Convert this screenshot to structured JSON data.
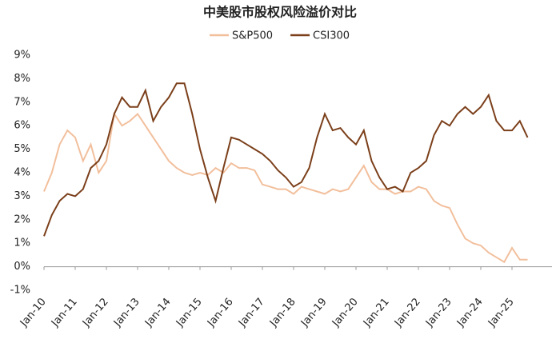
{
  "chart_data": {
    "type": "line",
    "title": "中美股市股权风险溢价对比",
    "categories": [
      "Jan-10",
      null,
      null,
      null,
      "Jan-11",
      null,
      null,
      null,
      "Jan-12",
      null,
      null,
      null,
      "Jan-13",
      null,
      null,
      null,
      "Jan-14",
      null,
      null,
      null,
      "Jan-15",
      null,
      null,
      null,
      "Jan-16",
      null,
      null,
      null,
      "Jan-17",
      null,
      null,
      null,
      "Jan-18",
      null,
      null,
      null,
      "Jan-19",
      null,
      null,
      null,
      "Jan-20",
      null,
      null,
      null,
      "Jan-21",
      null,
      null,
      null,
      "Jan-22",
      null,
      null,
      null,
      "Jan-23",
      null,
      null,
      null,
      "Jan-24",
      null,
      null,
      null,
      "Jan-25",
      null,
      null
    ],
    "series": [
      {
        "name": "S&P500",
        "color": "#f2bf9c",
        "values": [
          3.2,
          4.0,
          5.2,
          5.8,
          5.5,
          4.5,
          5.2,
          4.0,
          4.5,
          6.5,
          6.0,
          6.2,
          6.5,
          6.0,
          5.5,
          5.0,
          4.5,
          4.2,
          4.0,
          3.9,
          4.0,
          3.9,
          4.2,
          4.0,
          4.4,
          4.2,
          4.2,
          4.1,
          3.5,
          3.4,
          3.3,
          3.3,
          3.1,
          3.4,
          3.3,
          3.2,
          3.1,
          3.3,
          3.2,
          3.3,
          3.8,
          4.3,
          3.6,
          3.3,
          3.3,
          3.1,
          3.2,
          3.2,
          3.4,
          3.3,
          2.8,
          2.6,
          2.5,
          1.8,
          1.2,
          1.0,
          0.9,
          0.6,
          0.4,
          0.2,
          0.8,
          0.3,
          0.3
        ]
      },
      {
        "name": "CSI300",
        "color": "#7b3f1a",
        "values": [
          1.3,
          2.2,
          2.8,
          3.1,
          3.0,
          3.3,
          4.2,
          4.5,
          5.2,
          6.5,
          7.2,
          6.8,
          6.8,
          7.5,
          6.2,
          6.8,
          7.2,
          7.8,
          7.8,
          6.5,
          5.0,
          3.8,
          2.8,
          4.2,
          5.5,
          5.4,
          5.2,
          5.0,
          4.8,
          4.5,
          4.1,
          3.8,
          3.4,
          3.6,
          4.2,
          5.5,
          6.5,
          5.8,
          5.9,
          5.5,
          5.2,
          5.8,
          4.5,
          3.8,
          3.3,
          3.4,
          3.2,
          4.0,
          4.2,
          4.5,
          5.6,
          6.2,
          6.0,
          6.5,
          6.8,
          6.5,
          6.8,
          7.3,
          6.2,
          5.8,
          5.8,
          6.2,
          5.5
        ]
      }
    ],
    "ylim": [
      -1,
      9
    ],
    "yticks": [
      {
        "value": -1,
        "label": "-1%"
      },
      {
        "value": 0,
        "label": "0%"
      },
      {
        "value": 1,
        "label": "1%"
      },
      {
        "value": 2,
        "label": "2%"
      },
      {
        "value": 3,
        "label": "3%"
      },
      {
        "value": 4,
        "label": "4%"
      },
      {
        "value": 5,
        "label": "5%"
      },
      {
        "value": 6,
        "label": "6%"
      },
      {
        "value": 7,
        "label": "7%"
      },
      {
        "value": 8,
        "label": "8%"
      },
      {
        "value": 9,
        "label": "9%"
      }
    ],
    "legend": "top",
    "grid": false
  }
}
